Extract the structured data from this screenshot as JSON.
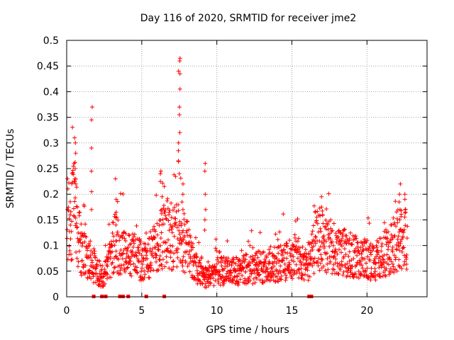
{
  "chart_data": {
    "type": "scatter",
    "title": "Day 116 of 2020, SRMTID for receiver jme2",
    "xlabel": "GPS time / hours",
    "ylabel": "SRMTID / TECUs",
    "xlim": [
      0,
      24
    ],
    "ylim": [
      0,
      0.5
    ],
    "xticks": [
      0,
      5,
      10,
      15,
      20
    ],
    "xtick_labels": [
      "0",
      "5",
      "10",
      "15",
      "20"
    ],
    "yticks": [
      0,
      0.05,
      0.1,
      0.15,
      0.2,
      0.25,
      0.3,
      0.35,
      0.4,
      0.45,
      0.5
    ],
    "ytick_labels": [
      "0",
      "0.05",
      "0.1",
      "0.15",
      "0.2",
      "0.25",
      "0.3",
      "0.35",
      "0.4",
      "0.45",
      "0.5"
    ],
    "grid": true,
    "marker": "+",
    "color": "#ff0000",
    "x_end_hours": 22.7,
    "trend": [
      [
        0.0,
        0.16
      ],
      [
        0.3,
        0.14
      ],
      [
        0.5,
        0.2
      ],
      [
        0.7,
        0.14
      ],
      [
        1.0,
        0.09
      ],
      [
        1.3,
        0.08
      ],
      [
        1.6,
        0.07
      ],
      [
        2.0,
        0.05
      ],
      [
        2.4,
        0.04
      ],
      [
        2.8,
        0.06
      ],
      [
        3.2,
        0.11
      ],
      [
        3.6,
        0.09
      ],
      [
        4.0,
        0.08
      ],
      [
        4.5,
        0.08
      ],
      [
        5.0,
        0.07
      ],
      [
        5.5,
        0.08
      ],
      [
        6.0,
        0.1
      ],
      [
        6.5,
        0.12
      ],
      [
        7.0,
        0.11
      ],
      [
        7.5,
        0.12
      ],
      [
        8.0,
        0.1
      ],
      [
        8.5,
        0.06
      ],
      [
        9.0,
        0.04
      ],
      [
        9.5,
        0.04
      ],
      [
        10.0,
        0.05
      ],
      [
        10.5,
        0.05
      ],
      [
        11.0,
        0.05
      ],
      [
        11.5,
        0.05
      ],
      [
        12.0,
        0.055
      ],
      [
        12.5,
        0.055
      ],
      [
        13.0,
        0.06
      ],
      [
        13.5,
        0.06
      ],
      [
        14.0,
        0.065
      ],
      [
        14.5,
        0.07
      ],
      [
        15.0,
        0.075
      ],
      [
        15.5,
        0.075
      ],
      [
        16.0,
        0.07
      ],
      [
        16.3,
        0.07
      ],
      [
        16.6,
        0.12
      ],
      [
        17.0,
        0.11
      ],
      [
        17.5,
        0.1
      ],
      [
        18.0,
        0.09
      ],
      [
        18.5,
        0.085
      ],
      [
        19.0,
        0.08
      ],
      [
        19.5,
        0.075
      ],
      [
        20.0,
        0.075
      ],
      [
        20.5,
        0.07
      ],
      [
        21.0,
        0.08
      ],
      [
        21.5,
        0.09
      ],
      [
        22.0,
        0.11
      ],
      [
        22.7,
        0.12
      ]
    ],
    "spikes": [
      {
        "x": 0.55,
        "values": [
          0.31,
          0.3,
          0.28,
          0.26,
          0.25,
          0.23,
          0.22
        ]
      },
      {
        "x": 1.65,
        "values": [
          0.37,
          0.345,
          0.29,
          0.245,
          0.205,
          0.17
        ]
      },
      {
        "x": 3.3,
        "values": [
          0.23,
          0.19,
          0.165,
          0.14
        ]
      },
      {
        "x": 6.3,
        "values": [
          0.245,
          0.24,
          0.225,
          0.195,
          0.17
        ]
      },
      {
        "x": 7.5,
        "values": [
          0.465,
          0.46,
          0.44,
          0.435,
          0.405,
          0.37,
          0.355,
          0.32,
          0.3,
          0.285,
          0.265,
          0.24
        ]
      },
      {
        "x": 7.7,
        "values": [
          0.22,
          0.2,
          0.185,
          0.17
        ]
      },
      {
        "x": 9.2,
        "values": [
          0.26,
          0.245,
          0.2,
          0.17,
          0.15,
          0.13
        ]
      },
      {
        "x": 17.0,
        "values": [
          0.195,
          0.175,
          0.16
        ]
      },
      {
        "x": 22.2,
        "values": [
          0.22,
          0.2,
          0.185,
          0.17,
          0.15
        ]
      },
      {
        "x": 22.5,
        "values": [
          0.2,
          0.19,
          0.17
        ]
      }
    ],
    "zero_markers_x": [
      1.8,
      2.35,
      2.6,
      3.55,
      3.75,
      4.1,
      5.3,
      6.5,
      16.15,
      16.3
    ]
  }
}
